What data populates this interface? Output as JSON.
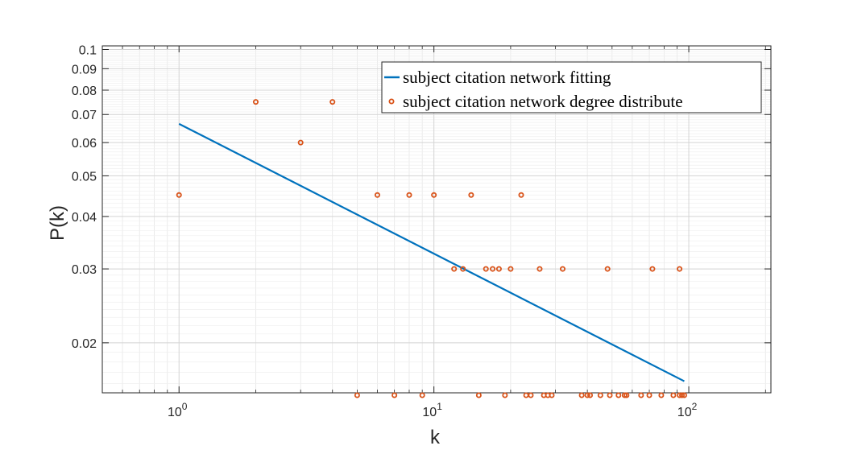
{
  "chart_data": {
    "type": "scatter",
    "xlabel": "k",
    "ylabel": "P(k)",
    "xscale": "log",
    "yscale": "log",
    "xlim": [
      0.5,
      210
    ],
    "ylim": [
      0.0152,
      0.102
    ],
    "grid": true,
    "legend_position": "top-right",
    "x_ticks": [
      {
        "value": 1,
        "base": "10",
        "exp": "0"
      },
      {
        "value": 10,
        "base": "10",
        "exp": "1"
      },
      {
        "value": 100,
        "base": "10",
        "exp": "2"
      }
    ],
    "y_ticks": [
      {
        "value": 0.02,
        "label": "0.02"
      },
      {
        "value": 0.03,
        "label": "0.03"
      },
      {
        "value": 0.04,
        "label": "0.04"
      },
      {
        "value": 0.05,
        "label": "0.05"
      },
      {
        "value": 0.06,
        "label": "0.06"
      },
      {
        "value": 0.07,
        "label": "0.07"
      },
      {
        "value": 0.08,
        "label": "0.08"
      },
      {
        "value": 0.09,
        "label": "0.09"
      },
      {
        "value": 0.1,
        "label": "0.1"
      }
    ],
    "series": [
      {
        "name": "subject citation network fitting",
        "kind": "line",
        "color": "#0072BD",
        "x": [
          1,
          96
        ],
        "y": [
          0.0665,
          0.0162
        ]
      },
      {
        "name": "subject citation network degree distribute",
        "kind": "scatter",
        "color": "#D95319",
        "points": [
          [
            1,
            0.045
          ],
          [
            2,
            0.075
          ],
          [
            3,
            0.06
          ],
          [
            4,
            0.075
          ],
          [
            6,
            0.045
          ],
          [
            8,
            0.045
          ],
          [
            10,
            0.045
          ],
          [
            14,
            0.045
          ],
          [
            22,
            0.045
          ],
          [
            12,
            0.03
          ],
          [
            13,
            0.03
          ],
          [
            16,
            0.03
          ],
          [
            17,
            0.03
          ],
          [
            18,
            0.03
          ],
          [
            20,
            0.03
          ],
          [
            26,
            0.03
          ],
          [
            32,
            0.03
          ],
          [
            48,
            0.03
          ],
          [
            72,
            0.03
          ],
          [
            92,
            0.03
          ],
          [
            5,
            0.015
          ],
          [
            7,
            0.015
          ],
          [
            9,
            0.015
          ],
          [
            15,
            0.015
          ],
          [
            19,
            0.015
          ],
          [
            23,
            0.015
          ],
          [
            24,
            0.015
          ],
          [
            27,
            0.015
          ],
          [
            28,
            0.015
          ],
          [
            29,
            0.015
          ],
          [
            38,
            0.015
          ],
          [
            40,
            0.015
          ],
          [
            41,
            0.015
          ],
          [
            45,
            0.015
          ],
          [
            49,
            0.015
          ],
          [
            53,
            0.015
          ],
          [
            56,
            0.015
          ],
          [
            57,
            0.015
          ],
          [
            65,
            0.015
          ],
          [
            70,
            0.015
          ],
          [
            78,
            0.015
          ],
          [
            87,
            0.015
          ],
          [
            92,
            0.015
          ],
          [
            94,
            0.015
          ],
          [
            96,
            0.015
          ]
        ]
      }
    ]
  }
}
